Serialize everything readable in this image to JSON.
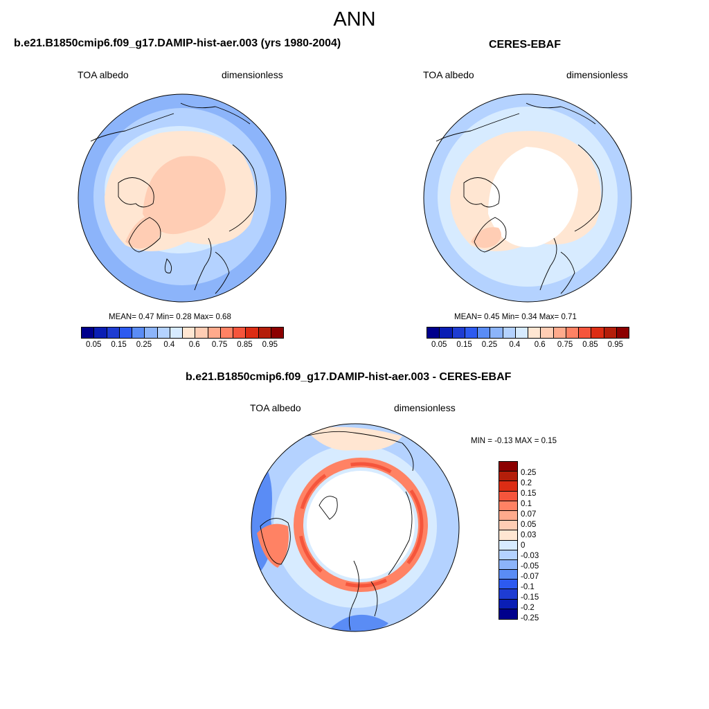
{
  "title": "ANN",
  "panels": [
    {
      "title": "b.e21.B1850cmip6.f09_g17.DAMIP-hist-aer.003 (yrs 1980-2004)",
      "left_label": "TOA albedo",
      "right_label": "dimensionless",
      "stats": {
        "mean_label": "MEAN=",
        "mean": "0.47",
        "min_label": "Min=",
        "min": "0.28",
        "max_label": "Max=",
        "max": "0.68"
      },
      "colorbar_ticks": [
        "0.05",
        "0.15",
        "0.25",
        "0.4",
        "0.6",
        "0.75",
        "0.85",
        "0.95"
      ]
    },
    {
      "title": "CERES-EBAF",
      "left_label": "TOA albedo",
      "right_label": "dimensionless",
      "stats": {
        "mean_label": "MEAN=",
        "mean": "0.45",
        "min_label": "Min=",
        "min": "0.34",
        "max_label": "Max=",
        "max": "0.71"
      },
      "colorbar_ticks": [
        "0.05",
        "0.15",
        "0.25",
        "0.4",
        "0.6",
        "0.75",
        "0.85",
        "0.95"
      ]
    },
    {
      "title": "b.e21.B1850cmip6.f09_g17.DAMIP-hist-aer.003 - CERES-EBAF",
      "left_label": "TOA albedo",
      "right_label": "dimensionless",
      "stats": {
        "min_label": "MIN =",
        "min": "-0.13",
        "max_label": "MAX =",
        "max": "0.15"
      },
      "colorbar_ticks": [
        "0.25",
        "0.2",
        "0.15",
        "0.1",
        "0.07",
        "0.05",
        "0.03",
        "0",
        "-0.03",
        "-0.05",
        "-0.07",
        "-0.1",
        "-0.15",
        "-0.2",
        "-0.25"
      ]
    }
  ],
  "colors": {
    "abs_scale": [
      "#00008c",
      "#0a1eb4",
      "#1e3cd2",
      "#2d5af0",
      "#5a8cf5",
      "#8cb4fa",
      "#b4d2ff",
      "#d7ebff",
      "#ffe6d2",
      "#ffcdb4",
      "#ffaa8c",
      "#ff8264",
      "#f5553c",
      "#dc2d14",
      "#b41e0a",
      "#8c0000"
    ],
    "diff_scale": [
      "#8c0000",
      "#b41e0a",
      "#dc2d14",
      "#f5553c",
      "#ff8264",
      "#ffaa8c",
      "#ffcdb4",
      "#ffe6d2",
      "#d7ebff",
      "#b4d2ff",
      "#8cb4fa",
      "#5a8cf5",
      "#2d5af0",
      "#1e3cd2",
      "#0a1eb4",
      "#00008c"
    ],
    "land_outline": "#000000",
    "missing": "#ffffff"
  }
}
